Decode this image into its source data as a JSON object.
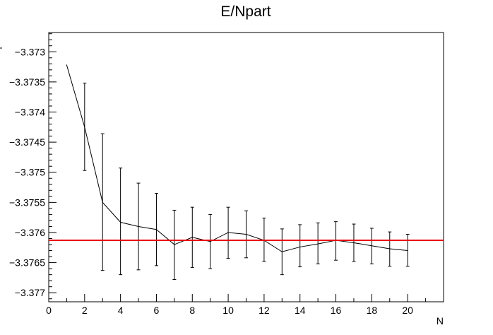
{
  "chart_data": {
    "type": "line",
    "title": "E/Npart",
    "xlabel": "N",
    "ylabel": "",
    "xlim": [
      0,
      22
    ],
    "ylim": [
      -3.37715,
      -3.37268
    ],
    "x_ticks": [
      0,
      2,
      4,
      6,
      8,
      10,
      12,
      14,
      16,
      18,
      20
    ],
    "y_ticks": [
      -3.373,
      -3.3735,
      -3.374,
      -3.3745,
      -3.375,
      -3.3755,
      -3.376,
      -3.3765,
      -3.377
    ],
    "x_tick_labels": [
      "0",
      "2",
      "4",
      "6",
      "8",
      "10",
      "12",
      "14",
      "16",
      "18",
      "20"
    ],
    "y_tick_labels": [
      "−3.373",
      "−3.3735",
      "−3.374",
      "−3.3745",
      "−3.375",
      "−3.3755",
      "−3.376",
      "−3.3765",
      "−3.377"
    ],
    "grid": false,
    "series": [
      {
        "x": [
          1,
          2,
          3,
          4,
          5,
          6,
          7,
          8,
          9,
          10,
          11,
          12,
          13,
          14,
          15,
          16,
          17,
          18,
          19,
          20
        ],
        "y": [
          -3.37322,
          -3.37425,
          -3.3755,
          -3.37583,
          -3.3759,
          -3.37595,
          -3.3762,
          -3.37608,
          -3.37615,
          -3.376,
          -3.37603,
          -3.37613,
          -3.37632,
          -3.37624,
          -3.37619,
          -3.37613,
          -3.37617,
          -3.37622,
          -3.37627,
          -3.3763
        ],
        "err_low": [
          null,
          -3.37497,
          -3.37663,
          -3.3767,
          -3.37662,
          -3.37655,
          -3.37678,
          -3.37658,
          -3.3766,
          -3.37643,
          -3.37642,
          -3.37648,
          -3.3767,
          -3.37657,
          -3.37652,
          -3.37646,
          -3.37648,
          -3.37652,
          -3.37656,
          -3.37656
        ],
        "err_high": [
          null,
          -3.37352,
          -3.37436,
          -3.37493,
          -3.37518,
          -3.37535,
          -3.37563,
          -3.37558,
          -3.3757,
          -3.37558,
          -3.37564,
          -3.37576,
          -3.37594,
          -3.37587,
          -3.37584,
          -3.37582,
          -3.37586,
          -3.37593,
          -3.37599,
          -3.37603
        ],
        "color": "#000000"
      }
    ],
    "reference_line": {
      "y": -3.37613,
      "color": "#e8000b"
    }
  }
}
